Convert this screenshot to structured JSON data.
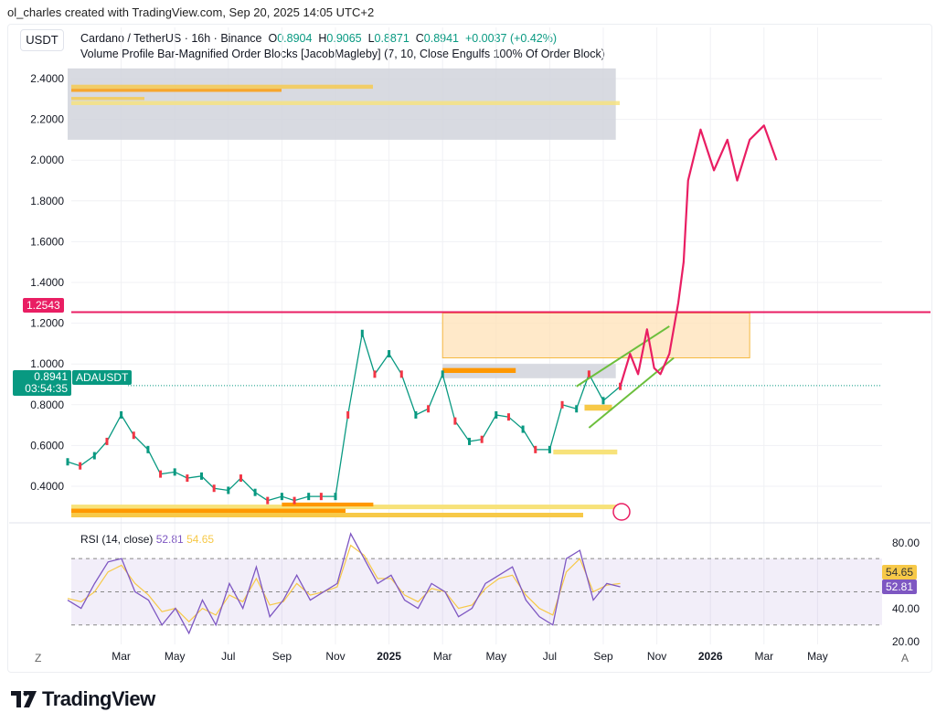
{
  "credit": "ol_charles created with TradingView.com, Sep 20, 2025 14:05 UTC+2",
  "currency": "USDT",
  "symbol_line": {
    "name": "Cardano / TetherUS · 16h · Binance",
    "o_label": "O",
    "o": "0.8904",
    "h_label": "H",
    "h": "0.9065",
    "l_label": "L",
    "l": "0.8871",
    "c_label": "C",
    "c": "0.8941",
    "change": "+0.0037 (+0.42%)"
  },
  "indicator": "Volume Profile Bar-Magnified Order Blocks [JacobMagleby] (7, 10, Close Engulfs 100% Of Order Block)",
  "rsi": {
    "label": "RSI (14, close)",
    "value": "52.81",
    "ma": "54.65",
    "ticks": [
      "80.00",
      "40.00",
      "20.00"
    ]
  },
  "price_tags": {
    "level": "1.2543",
    "last": "0.8941",
    "countdown": "03:54:35",
    "ticker": "ADAUSDT"
  },
  "axis_buttons": {
    "left": "Z",
    "right": "A"
  },
  "logo": "TradingView",
  "colors": {
    "up": "#089981",
    "level": "#e91e63",
    "projection": "#e91e63",
    "trend": "#6cbf3c",
    "rsi": "#7e57c2",
    "rsi_ma": "#f7c948",
    "zone": "#ffe0b2"
  },
  "chart_data": {
    "type": "line",
    "y_ticks": [
      "2.4000",
      "2.2000",
      "2.0000",
      "1.8000",
      "1.6000",
      "1.4000",
      "1.2000",
      "1.0000",
      "0.8000",
      "0.6000",
      "0.4000"
    ],
    "ylim": [
      0.26,
      2.5
    ],
    "x_ticks": [
      "Mar",
      "May",
      "Jul",
      "Sep",
      "Nov",
      "2025",
      "Mar",
      "May",
      "Jul",
      "Sep",
      "Nov",
      "2026",
      "Mar",
      "May"
    ],
    "grid": true,
    "price": {
      "x": [
        "2024-01-01",
        "2024-01-15",
        "2024-02-01",
        "2024-02-15",
        "2024-03-01",
        "2024-03-15",
        "2024-04-01",
        "2024-04-15",
        "2024-05-01",
        "2024-05-15",
        "2024-06-01",
        "2024-06-15",
        "2024-07-01",
        "2024-07-15",
        "2024-08-01",
        "2024-08-15",
        "2024-09-01",
        "2024-09-15",
        "2024-10-01",
        "2024-10-15",
        "2024-11-01",
        "2024-11-15",
        "2024-12-01",
        "2024-12-15",
        "2025-01-01",
        "2025-01-15",
        "2025-02-01",
        "2025-02-15",
        "2025-03-01",
        "2025-03-15",
        "2025-04-01",
        "2025-04-15",
        "2025-05-01",
        "2025-05-15",
        "2025-06-01",
        "2025-06-15",
        "2025-07-01",
        "2025-07-15",
        "2025-08-01",
        "2025-08-15",
        "2025-09-01",
        "2025-09-20"
      ],
      "y": [
        0.52,
        0.5,
        0.55,
        0.62,
        0.75,
        0.65,
        0.58,
        0.46,
        0.47,
        0.44,
        0.45,
        0.39,
        0.38,
        0.44,
        0.37,
        0.33,
        0.35,
        0.33,
        0.35,
        0.35,
        0.35,
        0.75,
        1.15,
        0.95,
        1.05,
        0.95,
        0.75,
        0.78,
        0.95,
        0.72,
        0.62,
        0.63,
        0.75,
        0.74,
        0.68,
        0.58,
        0.58,
        0.8,
        0.78,
        0.95,
        0.82,
        0.89
      ]
    },
    "projection": {
      "x": [
        "2025-09-20",
        "2025-10-01",
        "2025-10-10",
        "2025-10-20",
        "2025-10-28",
        "2025-11-05",
        "2025-11-15",
        "2025-11-25",
        "2025-12-01",
        "2025-12-06",
        "2025-12-20",
        "2026-01-05",
        "2026-01-20",
        "2026-02-01",
        "2026-02-15",
        "2026-03-01",
        "2026-03-15"
      ],
      "y": [
        0.89,
        1.05,
        0.95,
        1.17,
        0.98,
        0.95,
        1.05,
        1.3,
        1.5,
        1.9,
        2.15,
        1.95,
        2.1,
        1.9,
        2.1,
        2.17,
        2.0
      ]
    },
    "level": 1.2543,
    "trendlines": [
      {
        "x": [
          "2025-08-01",
          "2025-11-15"
        ],
        "y": [
          0.89,
          1.185
        ]
      },
      {
        "x": [
          "2025-08-15",
          "2025-11-20"
        ],
        "y": [
          0.687,
          1.03
        ]
      }
    ],
    "zones": [
      {
        "x": [
          "2024-01-01",
          "2025-09-15"
        ],
        "y": [
          2.1,
          2.45
        ],
        "kind": "gray"
      },
      {
        "x": [
          "2025-03-01",
          "2026-02-15"
        ],
        "y": [
          1.03,
          1.25
        ],
        "kind": "orange"
      },
      {
        "x": [
          "2025-03-01",
          "2025-09-15"
        ],
        "y": [
          0.93,
          1.0
        ],
        "kind": "gray"
      }
    ],
    "rsi_series": {
      "y": [
        45,
        40,
        55,
        68,
        70,
        50,
        45,
        30,
        40,
        25,
        45,
        30,
        55,
        40,
        65,
        35,
        45,
        60,
        45,
        50,
        55,
        85,
        70,
        55,
        60,
        45,
        40,
        55,
        50,
        35,
        40,
        55,
        60,
        65,
        45,
        35,
        30,
        70,
        75,
        45,
        55,
        53
      ]
    },
    "rsi_ma_series": {
      "y": [
        46,
        44,
        50,
        62,
        66,
        55,
        48,
        38,
        40,
        32,
        40,
        36,
        48,
        44,
        58,
        42,
        44,
        55,
        48,
        50,
        53,
        78,
        72,
        58,
        58,
        48,
        44,
        52,
        50,
        40,
        42,
        52,
        58,
        60,
        48,
        40,
        36,
        62,
        70,
        50,
        54,
        55
      ]
    },
    "rsi_lim": [
      15,
      90
    ],
    "rsi_bands": [
      70,
      50,
      30
    ]
  }
}
